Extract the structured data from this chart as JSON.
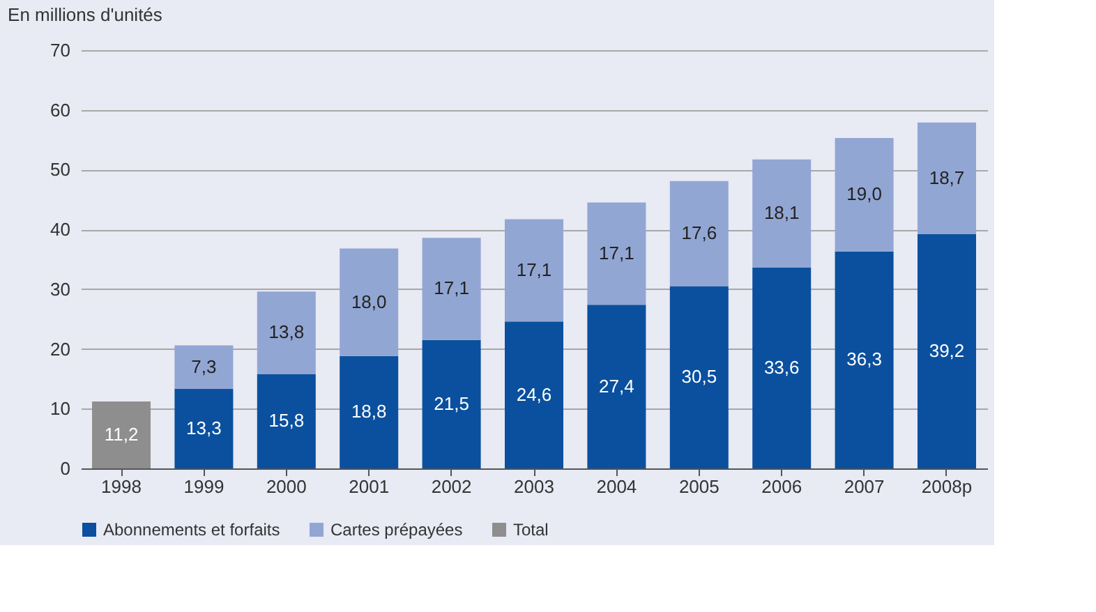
{
  "chart_data": {
    "type": "bar",
    "stacked": true,
    "ylabel": "En millions d'unités",
    "categories": [
      "1998",
      "1999",
      "2000",
      "2001",
      "2002",
      "2003",
      "2004",
      "2005",
      "2006",
      "2007",
      "2008p"
    ],
    "series": [
      {
        "name": "Abonnements et forfaits",
        "color": "#0a509e",
        "values": [
          null,
          13.3,
          15.8,
          18.8,
          21.5,
          24.6,
          27.4,
          30.5,
          33.6,
          36.3,
          39.2
        ],
        "value_labels": [
          null,
          "13,3",
          "15,8",
          "18,8",
          "21,5",
          "24,6",
          "27,4",
          "30,5",
          "33,6",
          "36,3",
          "39,2"
        ]
      },
      {
        "name": "Cartes prépayées",
        "color": "#92a6d3",
        "values": [
          null,
          7.3,
          13.8,
          18.0,
          17.1,
          17.1,
          17.1,
          17.6,
          18.1,
          19.0,
          18.7
        ],
        "value_labels": [
          null,
          "7,3",
          "13,8",
          "18,0",
          "17,1",
          "17,1",
          "17,1",
          "17,6",
          "18,1",
          "19,0",
          "18,7"
        ]
      },
      {
        "name": "Total",
        "color": "#8e8e8e",
        "values": [
          11.2,
          null,
          null,
          null,
          null,
          null,
          null,
          null,
          null,
          null,
          null
        ],
        "value_labels": [
          "11,2",
          null,
          null,
          null,
          null,
          null,
          null,
          null,
          null,
          null,
          null
        ]
      }
    ],
    "ylim": [
      0,
      70
    ],
    "yticks": [
      0,
      10,
      20,
      30,
      40,
      50,
      60,
      70
    ],
    "grid": "y",
    "legend": "bottom left"
  }
}
